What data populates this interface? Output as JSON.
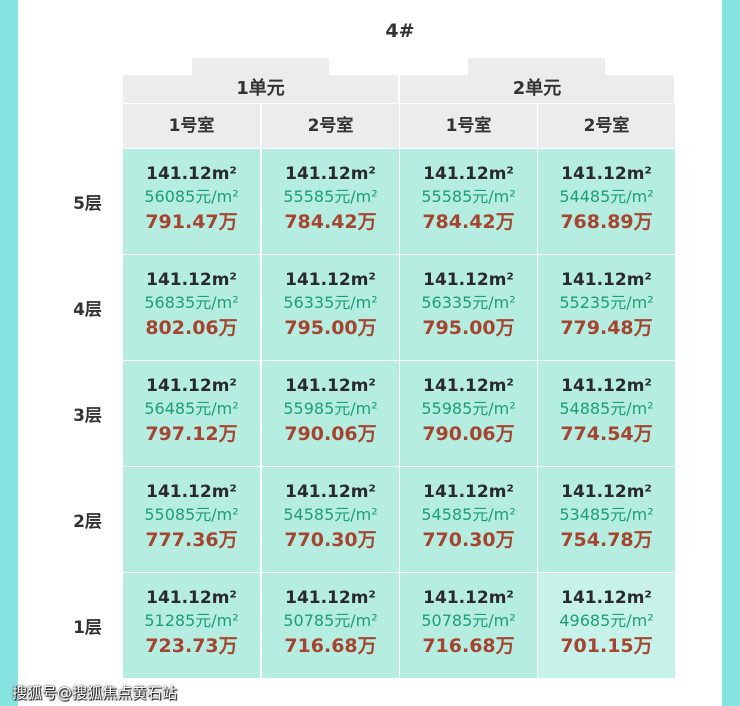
{
  "title": "4#",
  "units": [
    "1单元",
    "2单元"
  ],
  "rooms": [
    "1号室",
    "2号室",
    "1号室",
    "2号室"
  ],
  "floors": [
    {
      "label": "5层",
      "cells": [
        {
          "area": "141.12m²",
          "price": "56085元/m²",
          "total": "791.47万"
        },
        {
          "area": "141.12m²",
          "price": "55585元/m²",
          "total": "784.42万"
        },
        {
          "area": "141.12m²",
          "price": "55585元/m²",
          "total": "784.42万"
        },
        {
          "area": "141.12m²",
          "price": "54485元/m²",
          "total": "768.89万"
        }
      ]
    },
    {
      "label": "4层",
      "cells": [
        {
          "area": "141.12m²",
          "price": "56835元/m²",
          "total": "802.06万"
        },
        {
          "area": "141.12m²",
          "price": "56335元/m²",
          "total": "795.00万"
        },
        {
          "area": "141.12m²",
          "price": "56335元/m²",
          "total": "795.00万"
        },
        {
          "area": "141.12m²",
          "price": "55235元/m²",
          "total": "779.48万"
        }
      ]
    },
    {
      "label": "3层",
      "cells": [
        {
          "area": "141.12m²",
          "price": "56485元/m²",
          "total": "797.12万"
        },
        {
          "area": "141.12m²",
          "price": "55985元/m²",
          "total": "790.06万"
        },
        {
          "area": "141.12m²",
          "price": "55985元/m²",
          "total": "790.06万"
        },
        {
          "area": "141.12m²",
          "price": "54885元/m²",
          "total": "774.54万"
        }
      ]
    },
    {
      "label": "2层",
      "cells": [
        {
          "area": "141.12m²",
          "price": "55085元/m²",
          "total": "777.36万"
        },
        {
          "area": "141.12m²",
          "price": "54585元/m²",
          "total": "770.30万"
        },
        {
          "area": "141.12m²",
          "price": "54585元/m²",
          "total": "770.30万"
        },
        {
          "area": "141.12m²",
          "price": "53485元/m²",
          "total": "754.78万"
        }
      ]
    },
    {
      "label": "1层",
      "cells": [
        {
          "area": "141.12m²",
          "price": "51285元/m²",
          "total": "723.73万"
        },
        {
          "area": "141.12m²",
          "price": "50785元/m²",
          "total": "716.68万"
        },
        {
          "area": "141.12m²",
          "price": "50785元/m²",
          "total": "716.68万"
        },
        {
          "area": "141.12m²",
          "price": "49685元/m²",
          "total": "701.15万"
        }
      ]
    }
  ],
  "watermark": "搜狐号@搜狐焦点黄石站"
}
